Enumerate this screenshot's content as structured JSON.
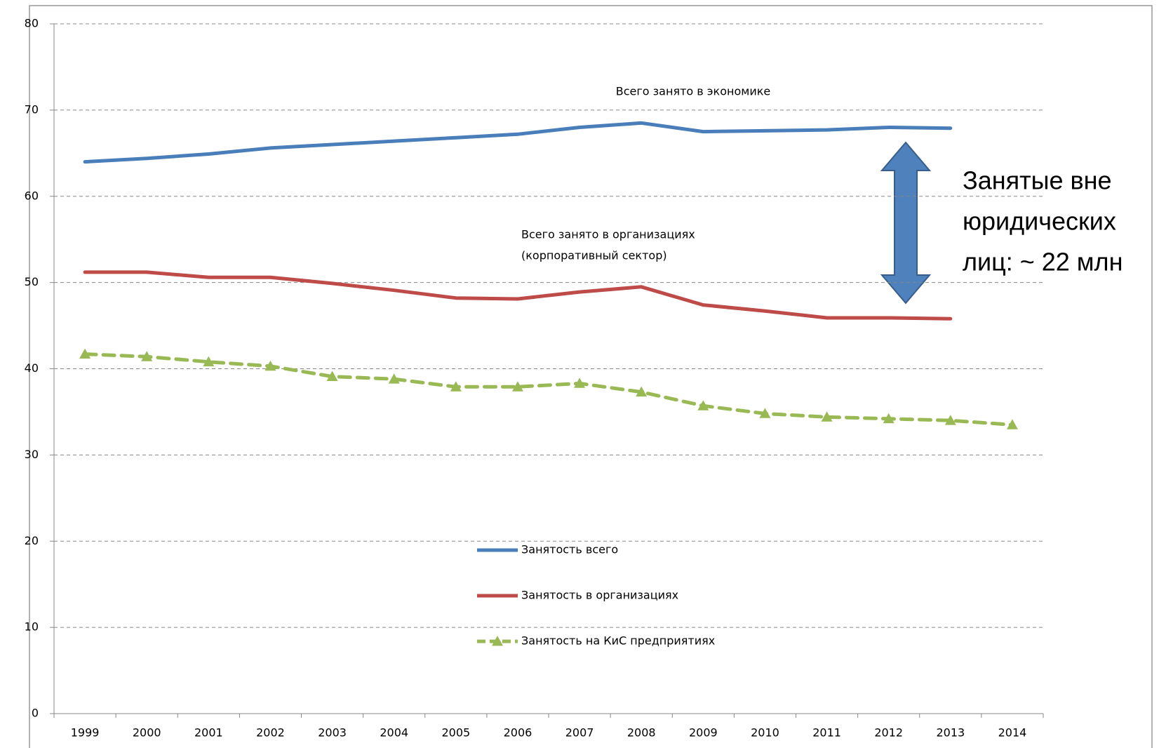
{
  "chart_data": {
    "type": "line",
    "categories": [
      "1999",
      "2000",
      "2001",
      "2002",
      "2003",
      "2004",
      "2005",
      "2006",
      "2007",
      "2008",
      "2009",
      "2010",
      "2011",
      "2012",
      "2013",
      "2014"
    ],
    "series": [
      {
        "name": "Занятость всего",
        "color": "#4a7ebb",
        "dashed": false,
        "marker": null,
        "values": [
          64.0,
          64.4,
          64.9,
          65.6,
          66.0,
          66.4,
          66.8,
          67.2,
          68.0,
          68.5,
          67.5,
          67.6,
          67.7,
          68.0,
          67.9,
          null
        ]
      },
      {
        "name": "Занятость в организациях",
        "color": "#be4b48",
        "dashed": false,
        "marker": null,
        "values": [
          51.2,
          51.2,
          50.6,
          50.6,
          49.9,
          49.1,
          48.2,
          48.1,
          48.9,
          49.5,
          47.4,
          46.7,
          45.9,
          45.9,
          45.8,
          null
        ]
      },
      {
        "name": "Занятость на КиС предприятиях",
        "color": "#98b954",
        "dashed": true,
        "marker": "triangle",
        "values": [
          41.7,
          41.4,
          40.8,
          40.3,
          39.1,
          38.8,
          37.9,
          37.9,
          38.3,
          37.3,
          35.7,
          34.8,
          34.4,
          34.2,
          34.0,
          33.5
        ]
      }
    ],
    "ylim": [
      0,
      80
    ],
    "yticks": [
      0,
      10,
      20,
      30,
      40,
      50,
      60,
      70,
      80
    ],
    "grid": true,
    "legend": "center",
    "annotations": [
      "Всего занято в экономике",
      "Всего занято в организациях",
      "(корпоративный сектор)",
      "Занятые вне",
      "юридических",
      "лиц: ~ 22 млн"
    ]
  }
}
